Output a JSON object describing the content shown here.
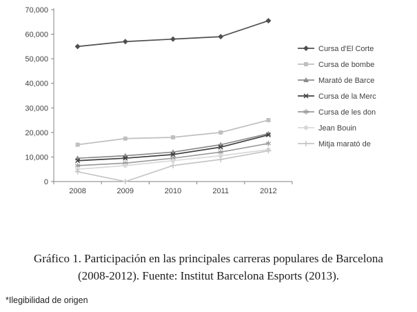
{
  "chart_data": {
    "type": "line",
    "categories": [
      "2008",
      "2009",
      "2010",
      "2011",
      "2012"
    ],
    "series": [
      {
        "name": "Cursa d'El Corte",
        "marker": "diamond",
        "color": "#4f4f4f",
        "values": [
          55000,
          57000,
          58000,
          59000,
          65500
        ]
      },
      {
        "name": "Cursa de bombe",
        "marker": "square",
        "color": "#bfbfbf",
        "values": [
          15000,
          17500,
          18000,
          20000,
          25000
        ]
      },
      {
        "name": "Marató de Barce",
        "marker": "triangle",
        "color": "#8c8c8c",
        "values": [
          9500,
          10500,
          12000,
          15000,
          19500
        ]
      },
      {
        "name": "Cursa de la Merc",
        "marker": "x",
        "color": "#3f3f3f",
        "values": [
          8500,
          9500,
          11000,
          14000,
          19000
        ]
      },
      {
        "name": "Cursa de les don",
        "marker": "asterisk",
        "color": "#9a9a9a",
        "values": [
          6500,
          7500,
          9500,
          12000,
          15500
        ]
      },
      {
        "name": "Jean Bouin",
        "marker": "circle",
        "color": "#d9d9d9",
        "values": [
          5000,
          6500,
          8500,
          10500,
          13000
        ]
      },
      {
        "name": "Mitja marató de",
        "marker": "plus",
        "color": "#c6c6c6",
        "values": [
          4000,
          0,
          6500,
          9000,
          12500
        ]
      }
    ],
    "title": "",
    "xlabel": "",
    "ylabel": "",
    "ylim": [
      0,
      70000
    ],
    "ytick_step": 10000,
    "grid": false,
    "legend_position": "right",
    "axis_color": "#808080",
    "tick_label_color": "#404040",
    "legend_text_color": "#404040"
  },
  "caption": {
    "line1": "Gráfico 1. Participación en las principales carreras populares de Barcelona",
    "line2": "(2008-2012). Fuente: Institut Barcelona Esports (2013)."
  },
  "footnote": {
    "text": "*Ilegibilidad de origen"
  }
}
